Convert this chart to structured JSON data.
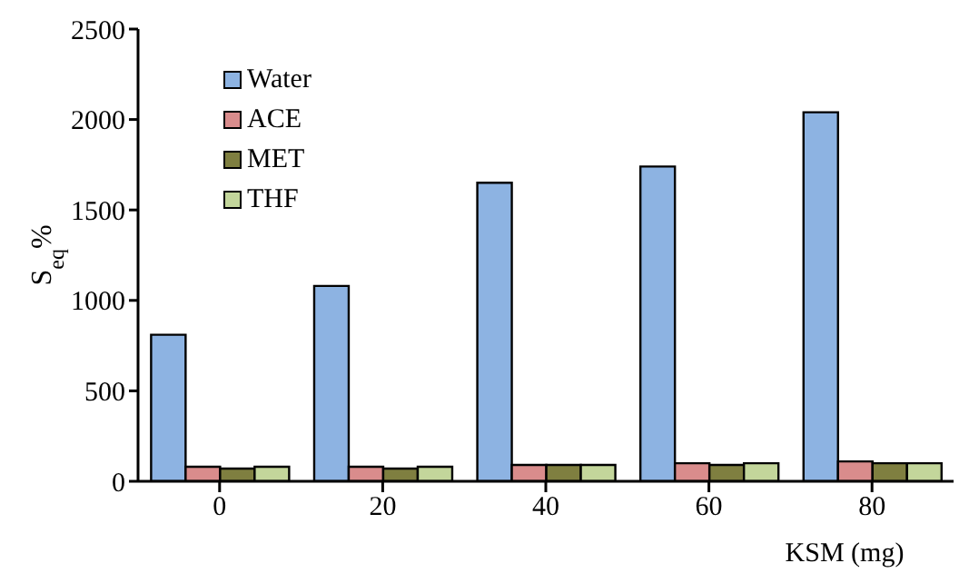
{
  "chart_data": {
    "type": "bar",
    "xlabel": "KSM (mg)",
    "ylabel": "S$_{eq}$%",
    "categories": [
      "0",
      "20",
      "40",
      "60",
      "80"
    ],
    "series": [
      {
        "name": "Water",
        "color": "#8db3e2",
        "values": [
          810,
          1080,
          1650,
          1740,
          2040
        ]
      },
      {
        "name": "ACE",
        "color": "#d98c8c",
        "values": [
          80,
          80,
          90,
          100,
          110
        ]
      },
      {
        "name": "MET",
        "color": "#7f7f40",
        "values": [
          70,
          70,
          90,
          90,
          100
        ]
      },
      {
        "name": "THF",
        "color": "#c3d69b",
        "values": [
          80,
          80,
          90,
          100,
          100
        ]
      }
    ],
    "ylim": [
      0,
      2500
    ],
    "yticks": [
      0,
      500,
      1000,
      1500,
      2000,
      2500
    ],
    "grid": false,
    "legend": "top left"
  }
}
